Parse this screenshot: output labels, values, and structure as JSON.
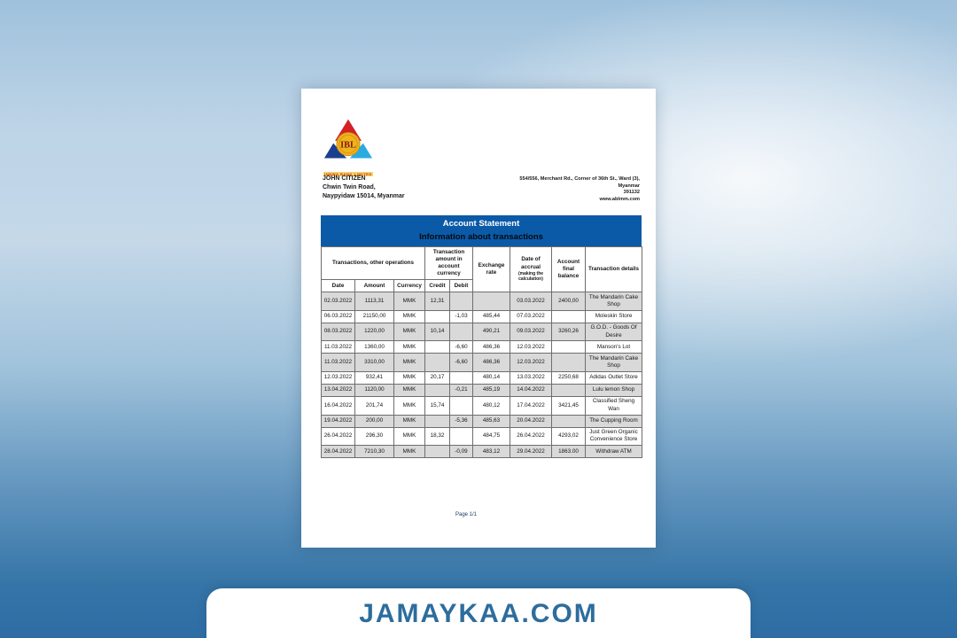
{
  "page": {
    "logo": {
      "bank_name": "INNWA BANK LIMITED",
      "monogram": "IBL"
    },
    "recipient": {
      "lines": [
        "JOHN CITIZEN",
        "Chwin Twin Road,",
        "Naypyidaw 15014, Myanmar"
      ]
    },
    "bank_address": {
      "lines": [
        "554/556, Merchant Rd., Corner of 36th St., Ward (3),",
        "Myanmar",
        "391132",
        "www.ablmm.com"
      ]
    },
    "statement": {
      "title": "Account Statement",
      "subtitle": "Information about transactions"
    },
    "footer": {
      "page_label": "Page 1/1"
    }
  },
  "table": {
    "group_headers": {
      "operations": "Transactions, other operations",
      "amount_in_currency": "Transaction amount in account currency",
      "exchange_rate": "Exchange rate",
      "accrual_main": "Date of accrual",
      "accrual_sub": "(making the calculation)",
      "final_balance": "Account final balance",
      "details": "Transaction details"
    },
    "sub_headers": [
      "Date",
      "Amount",
      "Currency",
      "Credit",
      "Debit"
    ],
    "field_names": [
      "date",
      "amount",
      "currency",
      "credit",
      "debit",
      "exchange-rate",
      "accrual-date",
      "final-balance",
      "details"
    ],
    "rows": [
      [
        "02.03.2022",
        "1113,31",
        "MMK",
        "12,31",
        "",
        "",
        "03.03.2022",
        "2400,00",
        "The Mandarin Cake Shop"
      ],
      [
        "06.03.2022",
        "21150,00",
        "MMK",
        "",
        "-1,03",
        "485,44",
        "07.03.2022",
        "",
        "Moleskin Store"
      ],
      [
        "08.03.2022",
        "1220,00",
        "MMK",
        "10,14",
        "",
        "490,21",
        "09.03.2022",
        "3260,26",
        "G.O.D. - Goods Of Desire"
      ],
      [
        "11.03.2022",
        "1360,00",
        "MMK",
        "",
        "-6,60",
        "486,36",
        "12.03.2022",
        "",
        "Manson's Lot"
      ],
      [
        "11.03.2022",
        "3310,00",
        "MMK",
        "",
        "-6,60",
        "486,36",
        "12.03.2022",
        "",
        "The Mandarin Cake Shop"
      ],
      [
        "12.03.2022",
        "932,41",
        "MMK",
        "20,17",
        "",
        "480,14",
        "13.03.2022",
        "2250,68",
        "Adidas Outlet Store"
      ],
      [
        "13.04.2022",
        "1120,00",
        "MMK",
        "",
        "-0,21",
        "485,19",
        "14.04.2022",
        "",
        "Lulu lemon Shop"
      ],
      [
        "16.04.2022",
        "201,74",
        "MMK",
        "15,74",
        "",
        "480,12",
        "17.04.2022",
        "3421,45",
        "Classified Sheng Wan"
      ],
      [
        "19.04.2022",
        "200,00",
        "MMK",
        "",
        "-5,36",
        "485,63",
        "20.04.2022",
        "",
        "The Cupping Room"
      ],
      [
        "26.04.2022",
        "296,30",
        "MMK",
        "18,32",
        "",
        "484,75",
        "26.04.2022",
        "4293,02",
        "Just Green Organic Convenience Store"
      ],
      [
        "28.04.2022",
        "7210,30",
        "MMK",
        "",
        "-0,09",
        "483,12",
        "29.04.2022",
        "1863.00",
        "Withdraw ATM"
      ]
    ]
  },
  "watermark": {
    "text": "JAMAYKAA.COM"
  },
  "colors": {
    "title_bar_blue": "#0b5aa7",
    "row_stripe_gray": "#d9d9d9",
    "watermark_blue": "#2d6d9d",
    "background_top": "#9fc1dc",
    "background_bottom": "#2e6da4",
    "logo_red": "#d42027",
    "logo_navy": "#1b3f8f",
    "logo_cyan": "#29abe2",
    "logo_gold": "#f0b31c"
  }
}
